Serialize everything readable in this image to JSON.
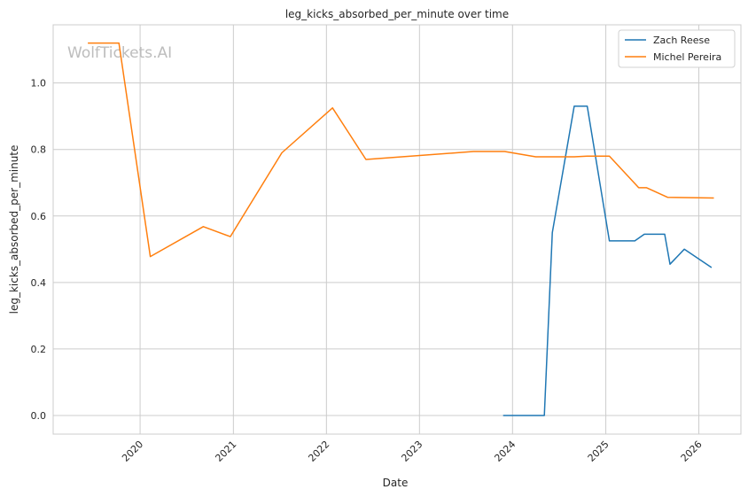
{
  "chart_data": {
    "type": "line",
    "title": "leg_kicks_absorbed_per_minute over time",
    "xlabel": "Date",
    "ylabel": "leg_kicks_absorbed_per_minute",
    "xlim": [
      "2019-01-25",
      "2026-06-15"
    ],
    "ylim": [
      -0.056,
      1.175
    ],
    "x_ticks": [
      "2020",
      "2021",
      "2022",
      "2023",
      "2024",
      "2025",
      "2026"
    ],
    "y_ticks": [
      "0.0",
      "0.2",
      "0.4",
      "0.6",
      "0.8",
      "1.0"
    ],
    "grid": true,
    "legend_position": "top-right",
    "watermark": "WolfTickets.AI",
    "series": [
      {
        "name": "Zach Reese",
        "color": "#1f77b4",
        "points": [
          {
            "x": "2023-11-25",
            "y": 0.0
          },
          {
            "x": "2024-05-05",
            "y": 0.0
          },
          {
            "x": "2024-06-05",
            "y": 0.55
          },
          {
            "x": "2024-08-30",
            "y": 0.93
          },
          {
            "x": "2024-10-20",
            "y": 0.93
          },
          {
            "x": "2025-01-15",
            "y": 0.525
          },
          {
            "x": "2025-04-25",
            "y": 0.525
          },
          {
            "x": "2025-06-01",
            "y": 0.545
          },
          {
            "x": "2025-08-20",
            "y": 0.545
          },
          {
            "x": "2025-09-10",
            "y": 0.455
          },
          {
            "x": "2025-11-05",
            "y": 0.5
          },
          {
            "x": "2026-02-20",
            "y": 0.445
          }
        ]
      },
      {
        "name": "Michel Pereira",
        "color": "#ff7f0e",
        "points": [
          {
            "x": "2019-06-10",
            "y": 1.12
          },
          {
            "x": "2019-09-20",
            "y": 1.12
          },
          {
            "x": "2019-10-10",
            "y": 1.12
          },
          {
            "x": "2020-02-10",
            "y": 0.478
          },
          {
            "x": "2020-09-05",
            "y": 0.568
          },
          {
            "x": "2020-12-20",
            "y": 0.538
          },
          {
            "x": "2021-07-10",
            "y": 0.79
          },
          {
            "x": "2022-01-25",
            "y": 0.925
          },
          {
            "x": "2022-06-05",
            "y": 0.77
          },
          {
            "x": "2023-08-01",
            "y": 0.794
          },
          {
            "x": "2023-12-01",
            "y": 0.794
          },
          {
            "x": "2024-04-01",
            "y": 0.778
          },
          {
            "x": "2024-08-30",
            "y": 0.778
          },
          {
            "x": "2024-10-20",
            "y": 0.78
          },
          {
            "x": "2025-01-15",
            "y": 0.78
          },
          {
            "x": "2025-05-10",
            "y": 0.685
          },
          {
            "x": "2025-06-10",
            "y": 0.685
          },
          {
            "x": "2025-09-01",
            "y": 0.656
          },
          {
            "x": "2026-03-01",
            "y": 0.654
          }
        ]
      }
    ]
  }
}
